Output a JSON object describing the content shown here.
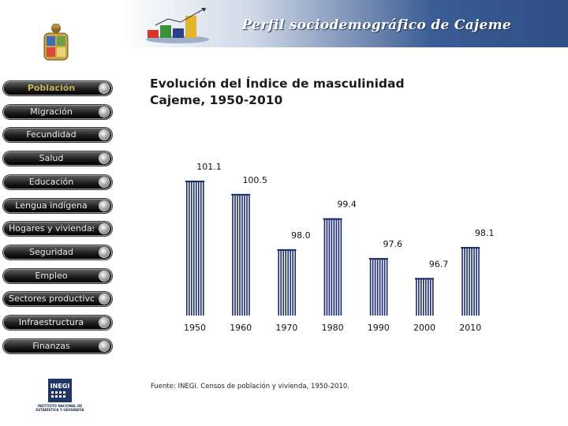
{
  "header": {
    "title": "Perfil sociodemográfico de Cajeme"
  },
  "sidebar": {
    "items": [
      {
        "label": "Población",
        "active": true
      },
      {
        "label": "Migración",
        "active": false
      },
      {
        "label": "Fecundidad",
        "active": false
      },
      {
        "label": "Salud",
        "active": false
      },
      {
        "label": "Educación",
        "active": false
      },
      {
        "label": "Lengua indígena",
        "active": false
      },
      {
        "label": "Hogares y viviendas",
        "active": false
      },
      {
        "label": "Seguridad",
        "active": false
      },
      {
        "label": "Empleo",
        "active": false
      },
      {
        "label": "Sectores productivos",
        "active": false
      },
      {
        "label": "Infraestructura",
        "active": false
      },
      {
        "label": "Finanzas",
        "active": false
      }
    ],
    "footer_logo": {
      "text": "INEGI",
      "name": "INSTITUTO NACIONAL DE ESTADÍSTICA Y GEOGRAFÍA"
    }
  },
  "chart_data": {
    "type": "bar",
    "title_lines": [
      "Evolución del Índice de masculinidad",
      "Cajeme, 1950-2010"
    ],
    "categories": [
      "1950",
      "1960",
      "1970",
      "1980",
      "1990",
      "2000",
      "2010"
    ],
    "values": [
      101.1,
      100.5,
      98.0,
      99.4,
      97.6,
      96.7,
      98.1
    ],
    "value_labels": [
      "101.1",
      "100.5",
      "98.0",
      "99.4",
      "97.6",
      "96.7",
      "98.1"
    ],
    "xlabel": "",
    "ylabel": "",
    "ylim": [
      95.0,
      101.6
    ],
    "bar_color": "#1a2a6b",
    "grid": false,
    "legend": "none"
  },
  "source": "Fuente: INEGI. Censos de población y vivienda, 1950-2010."
}
